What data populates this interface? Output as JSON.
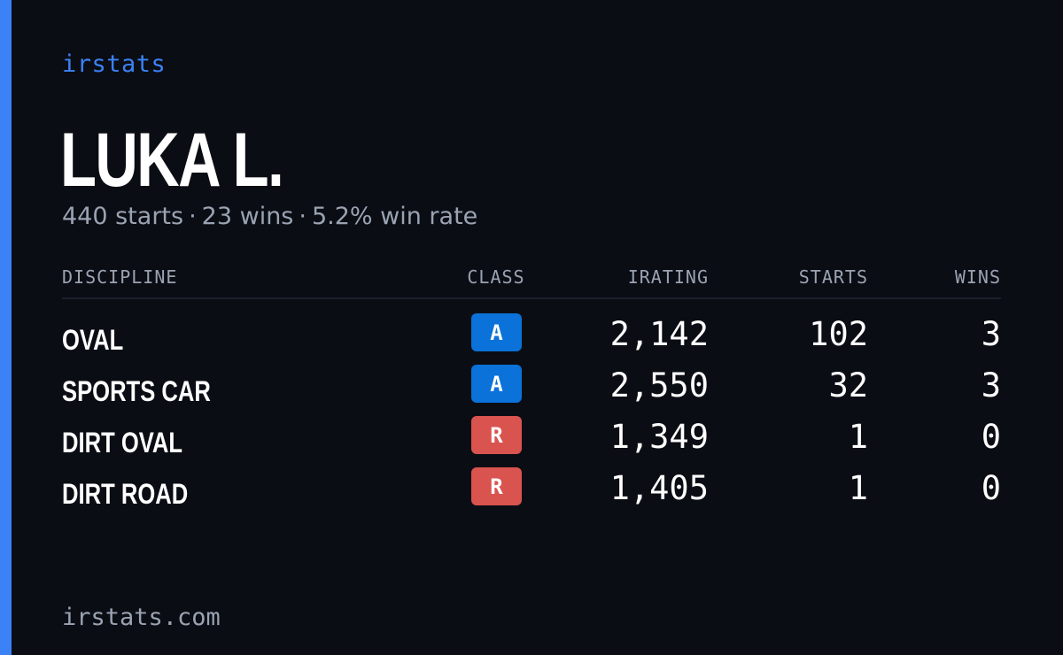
{
  "brand": "irstats",
  "driver": {
    "name": "LUKA L.",
    "starts_text": "440 starts",
    "wins_text": "23 wins",
    "winrate_text": "5.2% win rate",
    "separator": "·"
  },
  "table": {
    "headers": {
      "discipline": "DISCIPLINE",
      "class": "CLASS",
      "irating": "IRATING",
      "starts": "STARTS",
      "wins": "WINS"
    },
    "rows": [
      {
        "discipline": "OVAL",
        "class": "A",
        "class_color": "#0a72d9",
        "irating": "2,142",
        "starts": "102",
        "wins": "3"
      },
      {
        "discipline": "SPORTS CAR",
        "class": "A",
        "class_color": "#0a72d9",
        "irating": "2,550",
        "starts": "32",
        "wins": "3"
      },
      {
        "discipline": "DIRT OVAL",
        "class": "R",
        "class_color": "#d9534f",
        "irating": "1,349",
        "starts": "1",
        "wins": "0"
      },
      {
        "discipline": "DIRT ROAD",
        "class": "R",
        "class_color": "#d9534f",
        "irating": "1,405",
        "starts": "1",
        "wins": "0"
      }
    ]
  },
  "footer": "irstats.com",
  "colors": {
    "background": "#0b0d14",
    "accent": "#3b82f6",
    "muted_text": "#9aa3b2",
    "class_a": "#0a72d9",
    "class_r": "#d9534f"
  }
}
